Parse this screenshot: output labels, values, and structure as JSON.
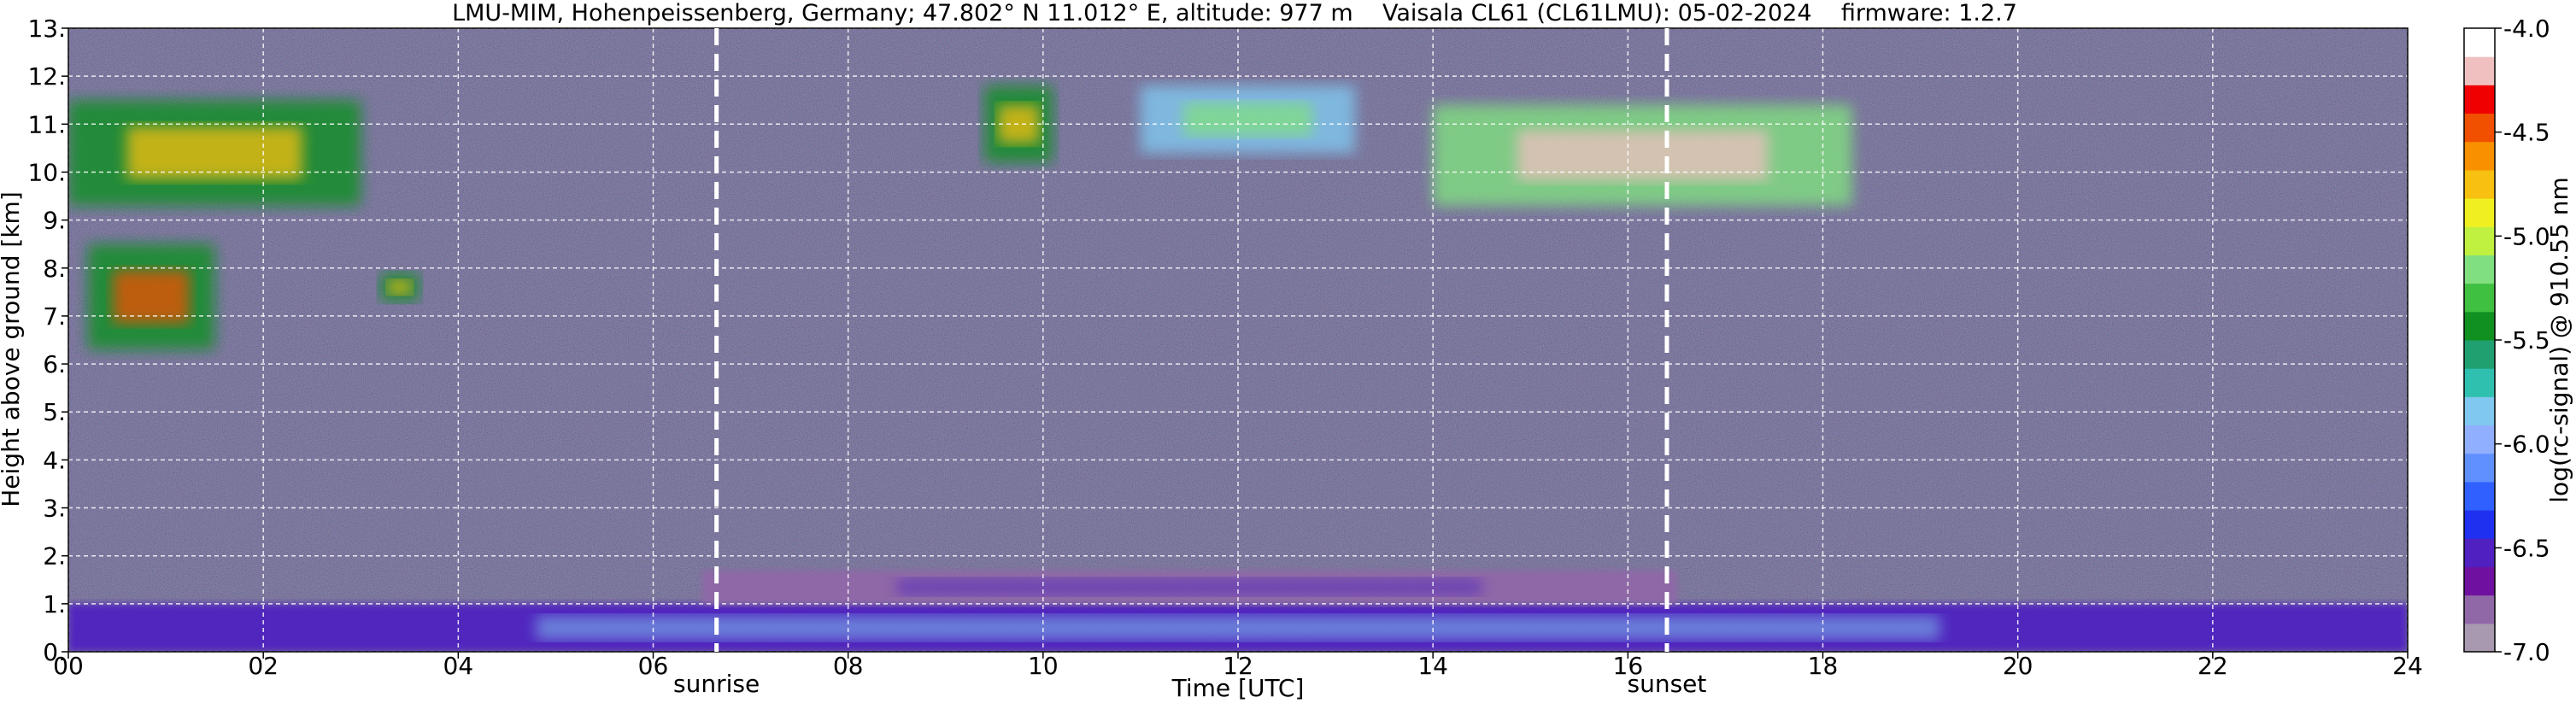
{
  "chart_data": {
    "type": "heatmap",
    "title": "LMU-MIM, Hohenpeissenberg, Germany; 47.802° N 11.012° E, altitude: 977 m    Vaisala CL61 (CL61LMU): 05-02-2024    firmware: 1.2.7",
    "xlabel": "Time [UTC]",
    "ylabel": "Height above ground [km]",
    "xlim": [
      0,
      24
    ],
    "ylim": [
      0,
      13
    ],
    "xticks": [
      0,
      2,
      4,
      6,
      8,
      10,
      12,
      14,
      16,
      18,
      20,
      22,
      24
    ],
    "xtick_labels": [
      "00",
      "02",
      "04",
      "06",
      "08",
      "10",
      "12",
      "14",
      "16",
      "18",
      "20",
      "22",
      "24"
    ],
    "yticks": [
      0,
      1,
      2,
      3,
      4,
      5,
      6,
      7,
      8,
      9,
      10,
      11,
      12,
      13
    ],
    "ytick_labels": [
      "0.",
      "1.",
      "2.",
      "3.",
      "4.",
      "5.",
      "6.",
      "7.",
      "8.",
      "9.",
      "10.",
      "11.",
      "12.",
      "13."
    ],
    "grid": true,
    "annotations": [
      {
        "label": "sunrise",
        "x": 6.65
      },
      {
        "label": "sunset",
        "x": 16.4
      }
    ],
    "colorbar": {
      "label": "log(rc-signal) @ 910.55 nm",
      "range": [
        -7.0,
        -4.0
      ],
      "ticks": [
        -7.0,
        -6.5,
        -6.0,
        -5.5,
        -5.0,
        -4.5,
        -4.0
      ],
      "tick_labels": [
        "-7.0",
        "-6.5",
        "-6.0",
        "-5.5",
        "-5.0",
        "-4.5",
        "-4.0"
      ],
      "colors": [
        "#a898b0",
        "#9068a8",
        "#7010a0",
        "#5020c0",
        "#2030f0",
        "#3060ff",
        "#6090ff",
        "#90b0ff",
        "#80c8f0",
        "#30c0b0",
        "#20a070",
        "#109020",
        "#40c040",
        "#80e080",
        "#c0f040",
        "#f0f020",
        "#f8c010",
        "#f89000",
        "#f05000",
        "#f00000",
        "#f0c0c0",
        "#ffffff"
      ]
    },
    "features": [
      {
        "name": "boundary layer",
        "x_range": [
          0,
          24
        ],
        "height_range_km": [
          0,
          1.0
        ],
        "log_signal_range": [
          -6.5,
          -5.8
        ]
      },
      {
        "name": "residual layer",
        "x_range": [
          6.5,
          16.5
        ],
        "height_range_km": [
          1.0,
          1.7
        ],
        "log_signal_range": [
          -6.8,
          -6.5
        ]
      },
      {
        "name": "low cloud",
        "x_range": [
          0.2,
          1.5
        ],
        "height_range_km": [
          6.3,
          8.5
        ],
        "log_signal_range": [
          -5.5,
          -4.5
        ]
      },
      {
        "name": "low cloud",
        "x_range": [
          3.2,
          3.6
        ],
        "height_range_km": [
          7.3,
          7.9
        ],
        "log_signal_range": [
          -5.5,
          -4.8
        ]
      },
      {
        "name": "cirrus",
        "x_range": [
          0,
          3.0
        ],
        "height_range_km": [
          9.3,
          11.5
        ],
        "log_signal_range": [
          -5.5,
          -4.8
        ]
      },
      {
        "name": "cirrus",
        "x_range": [
          9.4,
          10.1
        ],
        "height_range_km": [
          10.2,
          11.8
        ],
        "log_signal_range": [
          -5.5,
          -4.8
        ]
      },
      {
        "name": "cirrus",
        "x_range": [
          11.0,
          13.2
        ],
        "height_range_km": [
          10.4,
          11.8
        ],
        "log_signal_range": [
          -5.8,
          -5.2
        ]
      },
      {
        "name": "cirrus",
        "x_range": [
          14.0,
          18.3
        ],
        "height_range_km": [
          9.3,
          11.4
        ],
        "log_signal_range": [
          -5.2,
          -4.2
        ]
      }
    ]
  }
}
